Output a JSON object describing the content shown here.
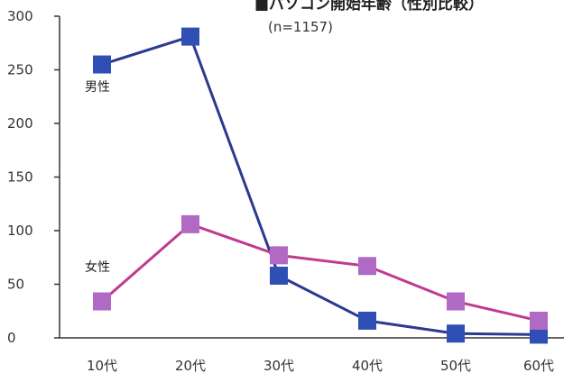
{
  "chart_data": {
    "type": "line",
    "title": "■パソコン開始年齢（性別比較）",
    "subtitle": "(n=1157)",
    "categories": [
      "10代",
      "20代",
      "30代",
      "40代",
      "50代",
      "60代"
    ],
    "ylim": [
      0,
      300
    ],
    "yticks": [
      "0",
      "50",
      "100",
      "150",
      "200",
      "250",
      "300"
    ],
    "grid": false,
    "series": [
      {
        "name": "男性",
        "values": [
          255,
          281,
          58,
          16,
          4,
          3
        ],
        "color": "#2b3a8f",
        "marker_color": "#2f4fb5"
      },
      {
        "name": "女性",
        "values": [
          34,
          106,
          77,
          67,
          34,
          16
        ],
        "color": "#c03a8f",
        "marker_color": "#b06ac4"
      }
    ]
  }
}
